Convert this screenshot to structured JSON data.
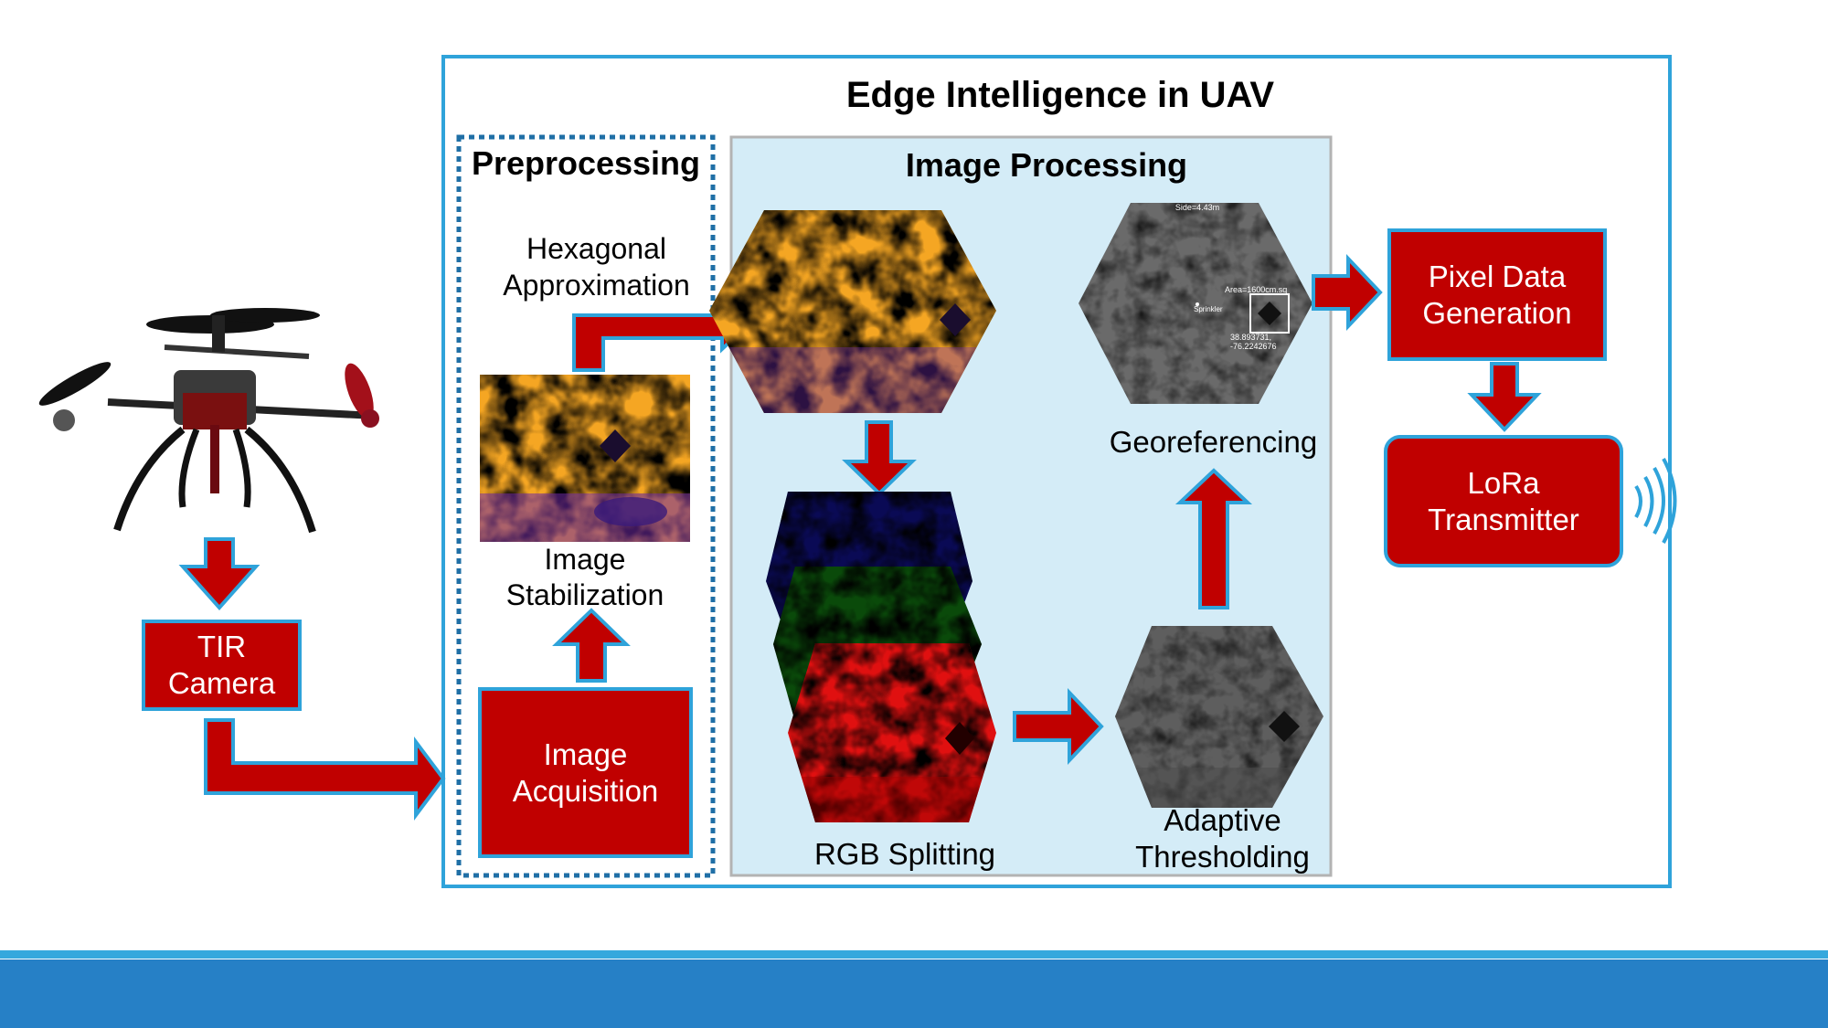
{
  "title": "Edge Intelligence in UAV",
  "sections": {
    "preprocessing": "Preprocessing",
    "image_processing": "Image Processing"
  },
  "boxes": {
    "tir_camera": "TIR\nCamera",
    "image_acquisition": "Image\nAcquisition",
    "pixel_data": "Pixel Data\nGeneration",
    "lora": "LoRa\nTransmitter"
  },
  "labels": {
    "hexagonal": "Hexagonal\nApproximation",
    "stabilization": "Image\nStabilization",
    "rgb_splitting": "RGB Splitting",
    "adaptive": "Adaptive\nThresholding",
    "georeferencing": "Georeferencing"
  },
  "geo_overlay": {
    "side": "Side=4.43m",
    "area": "Area=1600cm.sq",
    "sprinkler": "Sprinkler",
    "coords": "38.893731,\n-76.2242676"
  },
  "colors": {
    "accent_blue": "#2fa3da",
    "box_red": "#c00000",
    "panel_blue": "#d4ecf7",
    "footer_blue": "#2680c6"
  }
}
